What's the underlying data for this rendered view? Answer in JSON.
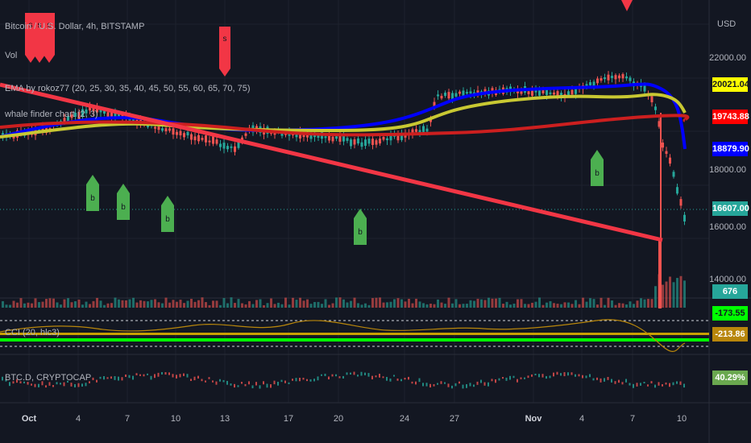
{
  "legend": {
    "title": "Bitcoin / U.S. Dollar, 4h, BITSTAMP",
    "vol": "Vol",
    "ema": "EMA by rokoz77 (20, 25, 30, 35, 40, 45, 50, 55, 60, 65, 70, 75)",
    "whale": "whale finder chart (2, 3)",
    "cci": "CCI (20, hlc3)",
    "btcd": "BTC.D, CRYPTOCAP"
  },
  "price_axis": {
    "currency": "USD",
    "ticks": [
      "22000.00",
      "18000.00",
      "16000.00",
      "14000.00"
    ]
  },
  "price_labels": [
    {
      "text": "20021.04",
      "bg": "#ffff00",
      "fg": "#131722"
    },
    {
      "text": "19743.88",
      "bg": "#ff0000",
      "fg": "#ffffff"
    },
    {
      "text": "18879.90",
      "bg": "#0000ff",
      "fg": "#ffffff"
    },
    {
      "text": "16607.00",
      "bg": "#26a69a",
      "fg": "#ffffff"
    },
    {
      "text": "676",
      "bg": "#26a69a",
      "fg": "#ffffff"
    },
    {
      "text": "-173.55",
      "bg": "#00ff00",
      "fg": "#131722"
    },
    {
      "text": "-213.86",
      "bg": "#b8860b",
      "fg": "#ffffff"
    },
    {
      "text": "40.29%",
      "bg": "#6aa84f",
      "fg": "#ffffff"
    }
  ],
  "time_axis": [
    "Oct",
    "4",
    "7",
    "10",
    "13",
    "17",
    "20",
    "24",
    "27",
    "Nov",
    "4",
    "7",
    "10"
  ],
  "markers": {
    "buy_letter": "b",
    "sell_letter": "s"
  },
  "colors": {
    "background": "#131722",
    "up": "#26a69a",
    "down": "#ef5350",
    "ema_blue": "#0000ff",
    "ema_yellow": "#c8c832",
    "ema_red": "#cc1f1f",
    "trendline": "#f23645",
    "buy_marker": "#4caf50",
    "sell_marker": "#f23645"
  }
}
